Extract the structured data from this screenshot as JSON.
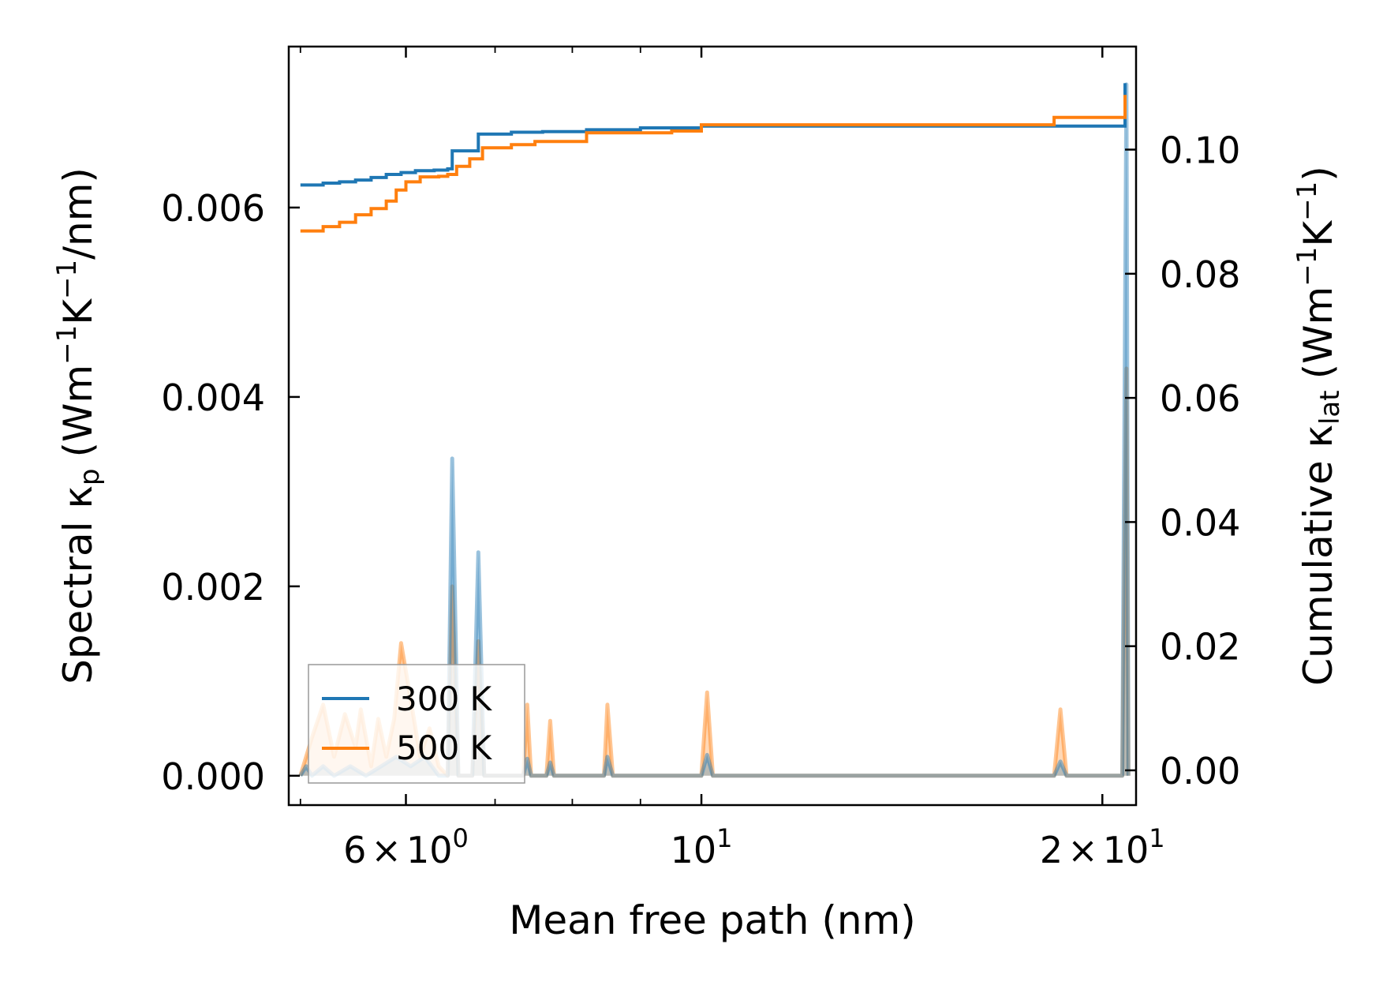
{
  "chart_data": {
    "type": "line",
    "xscale": "log",
    "xlabel": "Mean free path (nm)",
    "ylabel_left": {
      "base": "Spectral κ",
      "sub": "p",
      "unit": "(Wm",
      "sup1": "−1",
      "mid": "K",
      "sup2": "−1",
      "tail": "/nm)"
    },
    "ylabel_right": {
      "base": "Cumulative κ",
      "sub": "lat",
      "unit": "(Wm",
      "sup1": "−1",
      "mid": "K",
      "sup2": "−1",
      "tail": ")"
    },
    "xlim": [
      4.9,
      21.2
    ],
    "ylim_left": [
      -0.00031,
      0.0077
    ],
    "ylim_right": [
      -0.0056,
      0.1166
    ],
    "x_ticks": [
      {
        "value": 6,
        "mant": "6",
        "times": "×",
        "base": "10",
        "exp": "0"
      },
      {
        "value": 10,
        "mant": "",
        "times": "",
        "base": "10",
        "exp": "1"
      },
      {
        "value": 20,
        "mant": "2",
        "times": "×",
        "base": "10",
        "exp": "1"
      }
    ],
    "y_left_ticks": [
      {
        "value": 0.0,
        "label": "0.000"
      },
      {
        "value": 0.002,
        "label": "0.002"
      },
      {
        "value": 0.004,
        "label": "0.004"
      },
      {
        "value": 0.006,
        "label": "0.006"
      }
    ],
    "y_right_ticks": [
      {
        "value": 0.0,
        "label": "0.00"
      },
      {
        "value": 0.02,
        "label": "0.02"
      },
      {
        "value": 0.04,
        "label": "0.04"
      },
      {
        "value": 0.06,
        "label": "0.06"
      },
      {
        "value": 0.08,
        "label": "0.08"
      },
      {
        "value": 0.1,
        "label": "0.10"
      }
    ],
    "legend": {
      "position": "lower-left",
      "entries": [
        {
          "label": "300 K",
          "color": "#1f77b4"
        },
        {
          "label": "500 K",
          "color": "#ff7f0e"
        }
      ]
    },
    "series": [
      {
        "name": "300 K",
        "color": "#1f77b4",
        "cumulative": [
          [
            5.0,
            0.0943
          ],
          [
            5.08,
            0.0943
          ],
          [
            5.2,
            0.0946
          ],
          [
            5.35,
            0.0948
          ],
          [
            5.5,
            0.0951
          ],
          [
            5.65,
            0.0955
          ],
          [
            5.8,
            0.096
          ],
          [
            5.95,
            0.0963
          ],
          [
            6.1,
            0.0966
          ],
          [
            6.3,
            0.0967
          ],
          [
            6.45,
            0.0969
          ],
          [
            6.5,
            0.0998
          ],
          [
            6.75,
            0.0998
          ],
          [
            6.8,
            0.1025
          ],
          [
            7.2,
            0.1028
          ],
          [
            7.6,
            0.1029
          ],
          [
            8.2,
            0.1032
          ],
          [
            9.0,
            0.1035
          ],
          [
            10.0,
            0.1038
          ],
          [
            12.0,
            0.1038
          ],
          [
            16.0,
            0.1038
          ],
          [
            19.0,
            0.1038
          ],
          [
            20.7,
            0.1038
          ],
          [
            20.8,
            0.1107
          ]
        ],
        "spectral": [
          [
            5.0,
            0.0
          ],
          [
            5.05,
            0.0001
          ],
          [
            5.1,
            0.0
          ],
          [
            5.2,
            0.0001
          ],
          [
            5.3,
            0.0
          ],
          [
            5.45,
            0.0001
          ],
          [
            5.6,
            0.0
          ],
          [
            5.75,
            0.0001
          ],
          [
            5.9,
            0.0002
          ],
          [
            6.05,
            0.0001
          ],
          [
            6.2,
            0.0002
          ],
          [
            6.35,
            0.0
          ],
          [
            6.45,
            0.0
          ],
          [
            6.5,
            0.00335
          ],
          [
            6.57,
            0.0
          ],
          [
            6.73,
            0.0
          ],
          [
            6.8,
            0.00236
          ],
          [
            6.87,
            0.0
          ],
          [
            7.35,
            0.0
          ],
          [
            7.4,
            0.00018
          ],
          [
            7.45,
            0.0
          ],
          [
            7.65,
            0.0
          ],
          [
            7.7,
            0.00014
          ],
          [
            7.75,
            0.0
          ],
          [
            8.45,
            0.0
          ],
          [
            8.5,
            0.0002
          ],
          [
            8.58,
            0.0
          ],
          [
            10.0,
            0.0
          ],
          [
            10.1,
            0.00022
          ],
          [
            10.2,
            0.0
          ],
          [
            18.4,
            0.0
          ],
          [
            18.6,
            0.00015
          ],
          [
            18.8,
            0.0
          ],
          [
            20.7,
            0.0
          ],
          [
            20.85,
            0.0073
          ],
          [
            20.92,
            0.0
          ]
        ]
      },
      {
        "name": "500 K",
        "color": "#ff7f0e",
        "cumulative": [
          [
            5.0,
            0.0869
          ],
          [
            5.1,
            0.0869
          ],
          [
            5.2,
            0.0876
          ],
          [
            5.35,
            0.0883
          ],
          [
            5.5,
            0.0895
          ],
          [
            5.65,
            0.0905
          ],
          [
            5.8,
            0.0917
          ],
          [
            5.9,
            0.0935
          ],
          [
            6.0,
            0.0948
          ],
          [
            6.15,
            0.0956
          ],
          [
            6.35,
            0.0957
          ],
          [
            6.45,
            0.096
          ],
          [
            6.55,
            0.0973
          ],
          [
            6.7,
            0.0985
          ],
          [
            6.85,
            0.1003
          ],
          [
            7.2,
            0.1008
          ],
          [
            7.5,
            0.1013
          ],
          [
            8.2,
            0.1027
          ],
          [
            9.5,
            0.103
          ],
          [
            10.0,
            0.104
          ],
          [
            14.0,
            0.104
          ],
          [
            18.3,
            0.104
          ],
          [
            18.4,
            0.1052
          ],
          [
            20.7,
            0.1052
          ],
          [
            20.8,
            0.1088
          ]
        ],
        "spectral": [
          [
            5.0,
            0.0
          ],
          [
            5.1,
            0.0004
          ],
          [
            5.2,
            0.00075
          ],
          [
            5.3,
            0.0002
          ],
          [
            5.4,
            0.00065
          ],
          [
            5.5,
            0.0003
          ],
          [
            5.55,
            0.0007
          ],
          [
            5.65,
            0.0001
          ],
          [
            5.72,
            0.0006
          ],
          [
            5.8,
            0.0002
          ],
          [
            5.88,
            0.0006
          ],
          [
            5.95,
            0.0014
          ],
          [
            6.05,
            0.0008
          ],
          [
            6.15,
            0.0002
          ],
          [
            6.25,
            0.0005
          ],
          [
            6.35,
            0.0001
          ],
          [
            6.45,
            0.0
          ],
          [
            6.5,
            0.002
          ],
          [
            6.57,
            0.0
          ],
          [
            6.73,
            0.0
          ],
          [
            6.8,
            0.00142
          ],
          [
            6.87,
            0.0
          ],
          [
            7.35,
            0.0
          ],
          [
            7.4,
            0.00075
          ],
          [
            7.45,
            0.0
          ],
          [
            7.65,
            0.0
          ],
          [
            7.7,
            0.00058
          ],
          [
            7.75,
            0.0
          ],
          [
            8.45,
            0.0
          ],
          [
            8.5,
            0.00075
          ],
          [
            8.58,
            0.0
          ],
          [
            10.0,
            0.0
          ],
          [
            10.1,
            0.00088
          ],
          [
            10.2,
            0.0
          ],
          [
            18.4,
            0.0
          ],
          [
            18.6,
            0.0007
          ],
          [
            18.8,
            0.0
          ],
          [
            20.7,
            0.0
          ],
          [
            20.85,
            0.0043
          ],
          [
            20.92,
            0.0
          ]
        ]
      }
    ]
  }
}
